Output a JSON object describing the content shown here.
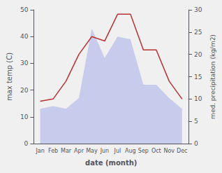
{
  "chart_data": {
    "type": "line",
    "xlabel": "date (month)",
    "ylabel": "max temp (C)",
    "y2label": "med. precipitation (kg/m2)",
    "categories": [
      "Jan",
      "Feb",
      "Mar",
      "Apr",
      "May",
      "Jun",
      "Jul",
      "Aug",
      "Sep",
      "Oct",
      "Nov",
      "Dec"
    ],
    "series": [
      {
        "type": "area",
        "color": "#c8ccec",
        "values": [
          13,
          14,
          13,
          17,
          43,
          32,
          40,
          39,
          22,
          22,
          17,
          13
        ]
      },
      {
        "type": "line",
        "color": "#b83232",
        "axis": "y2",
        "values": [
          9.5,
          10,
          14,
          20,
          24,
          23,
          29,
          29,
          21,
          21,
          14,
          10
        ]
      }
    ],
    "ylim": [
      0,
      50
    ],
    "yticks": [
      0,
      10,
      20,
      30,
      40,
      50
    ],
    "y2lim": [
      0,
      30
    ],
    "y2ticks": [
      0,
      5,
      10,
      15,
      20,
      25,
      30
    ],
    "grid": false
  }
}
